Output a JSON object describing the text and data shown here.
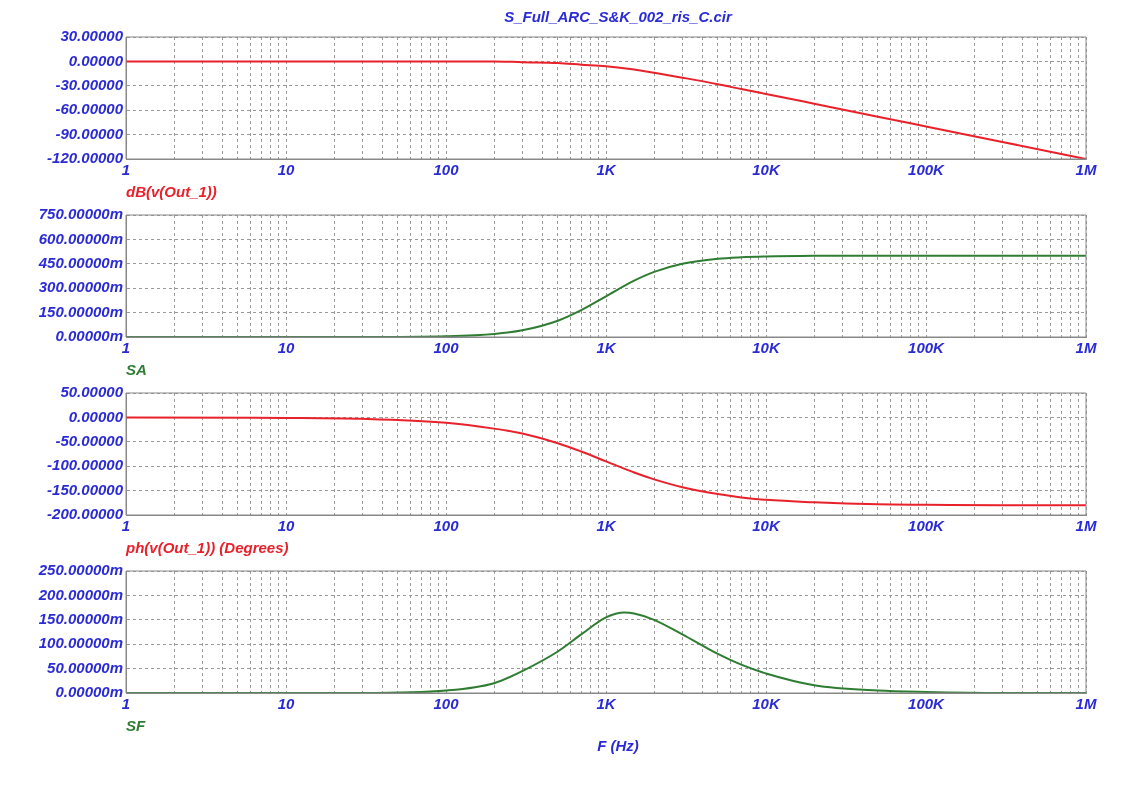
{
  "chart_data": [
    {
      "type": "line",
      "title": "S_Full_ARC_S&K_002_ris_C.cir",
      "log": "x",
      "grid": true,
      "marker": "none",
      "x": [
        1,
        10,
        30,
        100,
        200,
        300,
        500,
        700,
        1000,
        1500,
        2000,
        3000,
        5000,
        7000,
        10000,
        20000,
        50000,
        100000,
        300000,
        1000000
      ],
      "series": [
        {
          "name": "dB(v(Out_1))",
          "color": "#e8212b",
          "values": [
            0,
            0,
            0,
            0,
            0,
            -1,
            -2,
            -4,
            -6,
            -10,
            -14,
            -20,
            -28,
            -34,
            -40,
            -52,
            -68,
            -80,
            -99,
            -120
          ]
        }
      ],
      "xlim": [
        1,
        1000000
      ],
      "xticks": [
        {
          "value": 1,
          "label": "1"
        },
        {
          "value": 2,
          "label": null
        },
        {
          "value": 3,
          "label": null
        },
        {
          "value": 4,
          "label": null
        },
        {
          "value": 5,
          "label": null
        },
        {
          "value": 6,
          "label": null
        },
        {
          "value": 7,
          "label": null
        },
        {
          "value": 8,
          "label": null
        },
        {
          "value": 9,
          "label": null
        },
        {
          "value": 10,
          "label": "10"
        },
        {
          "value": 20,
          "label": null
        },
        {
          "value": 30,
          "label": null
        },
        {
          "value": 40,
          "label": null
        },
        {
          "value": 50,
          "label": null
        },
        {
          "value": 60,
          "label": null
        },
        {
          "value": 70,
          "label": null
        },
        {
          "value": 80,
          "label": null
        },
        {
          "value": 90,
          "label": null
        },
        {
          "value": 100,
          "label": "100"
        },
        {
          "value": 200,
          "label": null
        },
        {
          "value": 300,
          "label": null
        },
        {
          "value": 400,
          "label": null
        },
        {
          "value": 500,
          "label": null
        },
        {
          "value": 600,
          "label": null
        },
        {
          "value": 700,
          "label": null
        },
        {
          "value": 800,
          "label": null
        },
        {
          "value": 900,
          "label": null
        },
        {
          "value": 1000,
          "label": "1K"
        },
        {
          "value": 2000,
          "label": null
        },
        {
          "value": 3000,
          "label": null
        },
        {
          "value": 4000,
          "label": null
        },
        {
          "value": 5000,
          "label": null
        },
        {
          "value": 6000,
          "label": null
        },
        {
          "value": 7000,
          "label": null
        },
        {
          "value": 8000,
          "label": null
        },
        {
          "value": 9000,
          "label": null
        },
        {
          "value": 10000,
          "label": "10K"
        },
        {
          "value": 20000,
          "label": null
        },
        {
          "value": 30000,
          "label": null
        },
        {
          "value": 40000,
          "label": null
        },
        {
          "value": 50000,
          "label": null
        },
        {
          "value": 60000,
          "label": null
        },
        {
          "value": 70000,
          "label": null
        },
        {
          "value": 80000,
          "label": null
        },
        {
          "value": 90000,
          "label": null
        },
        {
          "value": 100000,
          "label": "100K"
        },
        {
          "value": 200000,
          "label": null
        },
        {
          "value": 300000,
          "label": null
        },
        {
          "value": 400000,
          "label": null
        },
        {
          "value": 500000,
          "label": null
        },
        {
          "value": 600000,
          "label": null
        },
        {
          "value": 700000,
          "label": null
        },
        {
          "value": 800000,
          "label": null
        },
        {
          "value": 900000,
          "label": null
        },
        {
          "value": 1000000,
          "label": "1M"
        }
      ],
      "ylim": [
        -120,
        30
      ],
      "yticks": [
        {
          "value": -120,
          "label": "-120.00000"
        },
        {
          "value": -90,
          "label": "-90.00000"
        },
        {
          "value": -60,
          "label": "-60.00000"
        },
        {
          "value": -30,
          "label": "-30.00000"
        },
        {
          "value": 0,
          "label": "0.00000"
        },
        {
          "value": 30,
          "label": "30.00000"
        }
      ]
    },
    {
      "type": "line",
      "log": "x",
      "grid": true,
      "marker": "none",
      "x": [
        1,
        10,
        30,
        100,
        200,
        300,
        500,
        700,
        1000,
        1500,
        2000,
        3000,
        5000,
        7000,
        10000,
        20000,
        50000,
        100000,
        300000,
        1000000
      ],
      "series": [
        {
          "name": "SA",
          "color": "#2e7d32",
          "values": [
            0,
            0,
            0,
            5,
            19,
            41,
            100,
            165,
            250,
            346,
            400,
            450,
            481,
            490,
            495,
            499,
            500,
            500,
            500,
            500
          ]
        }
      ],
      "xlim": [
        1,
        1000000
      ],
      "xticks": [
        {
          "value": 1,
          "label": "1"
        },
        {
          "value": 2,
          "label": null
        },
        {
          "value": 3,
          "label": null
        },
        {
          "value": 4,
          "label": null
        },
        {
          "value": 5,
          "label": null
        },
        {
          "value": 6,
          "label": null
        },
        {
          "value": 7,
          "label": null
        },
        {
          "value": 8,
          "label": null
        },
        {
          "value": 9,
          "label": null
        },
        {
          "value": 10,
          "label": "10"
        },
        {
          "value": 20,
          "label": null
        },
        {
          "value": 30,
          "label": null
        },
        {
          "value": 40,
          "label": null
        },
        {
          "value": 50,
          "label": null
        },
        {
          "value": 60,
          "label": null
        },
        {
          "value": 70,
          "label": null
        },
        {
          "value": 80,
          "label": null
        },
        {
          "value": 90,
          "label": null
        },
        {
          "value": 100,
          "label": "100"
        },
        {
          "value": 200,
          "label": null
        },
        {
          "value": 300,
          "label": null
        },
        {
          "value": 400,
          "label": null
        },
        {
          "value": 500,
          "label": null
        },
        {
          "value": 600,
          "label": null
        },
        {
          "value": 700,
          "label": null
        },
        {
          "value": 800,
          "label": null
        },
        {
          "value": 900,
          "label": null
        },
        {
          "value": 1000,
          "label": "1K"
        },
        {
          "value": 2000,
          "label": null
        },
        {
          "value": 3000,
          "label": null
        },
        {
          "value": 4000,
          "label": null
        },
        {
          "value": 5000,
          "label": null
        },
        {
          "value": 6000,
          "label": null
        },
        {
          "value": 7000,
          "label": null
        },
        {
          "value": 8000,
          "label": null
        },
        {
          "value": 9000,
          "label": null
        },
        {
          "value": 10000,
          "label": "10K"
        },
        {
          "value": 20000,
          "label": null
        },
        {
          "value": 30000,
          "label": null
        },
        {
          "value": 40000,
          "label": null
        },
        {
          "value": 50000,
          "label": null
        },
        {
          "value": 60000,
          "label": null
        },
        {
          "value": 70000,
          "label": null
        },
        {
          "value": 80000,
          "label": null
        },
        {
          "value": 90000,
          "label": null
        },
        {
          "value": 100000,
          "label": "100K"
        },
        {
          "value": 200000,
          "label": null
        },
        {
          "value": 300000,
          "label": null
        },
        {
          "value": 400000,
          "label": null
        },
        {
          "value": 500000,
          "label": null
        },
        {
          "value": 600000,
          "label": null
        },
        {
          "value": 700000,
          "label": null
        },
        {
          "value": 800000,
          "label": null
        },
        {
          "value": 900000,
          "label": null
        },
        {
          "value": 1000000,
          "label": "1M"
        }
      ],
      "ylim": [
        0,
        750
      ],
      "yticks": [
        {
          "value": 0,
          "label": "0.00000m"
        },
        {
          "value": 150,
          "label": "150.00000m"
        },
        {
          "value": 300,
          "label": "300.00000m"
        },
        {
          "value": 450,
          "label": "450.00000m"
        },
        {
          "value": 600,
          "label": "600.00000m"
        },
        {
          "value": 750,
          "label": "750.00000m"
        }
      ]
    },
    {
      "type": "line",
      "log": "x",
      "grid": true,
      "marker": "none",
      "x": [
        1,
        10,
        30,
        100,
        200,
        300,
        500,
        700,
        1000,
        1500,
        2000,
        3000,
        5000,
        7000,
        10000,
        20000,
        50000,
        100000,
        300000,
        1000000
      ],
      "series": [
        {
          "name": "ph(v(Out_1)) (Degrees)",
          "color": "#e8212b",
          "values": [
            0,
            -1,
            -3,
            -11,
            -23,
            -33,
            -53,
            -70,
            -90,
            -113,
            -127,
            -143,
            -157,
            -164,
            -169,
            -174,
            -178,
            -179,
            -180,
            -180
          ]
        }
      ],
      "xlim": [
        1,
        1000000
      ],
      "xticks": [
        {
          "value": 1,
          "label": "1"
        },
        {
          "value": 2,
          "label": null
        },
        {
          "value": 3,
          "label": null
        },
        {
          "value": 4,
          "label": null
        },
        {
          "value": 5,
          "label": null
        },
        {
          "value": 6,
          "label": null
        },
        {
          "value": 7,
          "label": null
        },
        {
          "value": 8,
          "label": null
        },
        {
          "value": 9,
          "label": null
        },
        {
          "value": 10,
          "label": "10"
        },
        {
          "value": 20,
          "label": null
        },
        {
          "value": 30,
          "label": null
        },
        {
          "value": 40,
          "label": null
        },
        {
          "value": 50,
          "label": null
        },
        {
          "value": 60,
          "label": null
        },
        {
          "value": 70,
          "label": null
        },
        {
          "value": 80,
          "label": null
        },
        {
          "value": 90,
          "label": null
        },
        {
          "value": 100,
          "label": "100"
        },
        {
          "value": 200,
          "label": null
        },
        {
          "value": 300,
          "label": null
        },
        {
          "value": 400,
          "label": null
        },
        {
          "value": 500,
          "label": null
        },
        {
          "value": 600,
          "label": null
        },
        {
          "value": 700,
          "label": null
        },
        {
          "value": 800,
          "label": null
        },
        {
          "value": 900,
          "label": null
        },
        {
          "value": 1000,
          "label": "1K"
        },
        {
          "value": 2000,
          "label": null
        },
        {
          "value": 3000,
          "label": null
        },
        {
          "value": 4000,
          "label": null
        },
        {
          "value": 5000,
          "label": null
        },
        {
          "value": 6000,
          "label": null
        },
        {
          "value": 7000,
          "label": null
        },
        {
          "value": 8000,
          "label": null
        },
        {
          "value": 9000,
          "label": null
        },
        {
          "value": 10000,
          "label": "10K"
        },
        {
          "value": 20000,
          "label": null
        },
        {
          "value": 30000,
          "label": null
        },
        {
          "value": 40000,
          "label": null
        },
        {
          "value": 50000,
          "label": null
        },
        {
          "value": 60000,
          "label": null
        },
        {
          "value": 70000,
          "label": null
        },
        {
          "value": 80000,
          "label": null
        },
        {
          "value": 90000,
          "label": null
        },
        {
          "value": 100000,
          "label": "100K"
        },
        {
          "value": 200000,
          "label": null
        },
        {
          "value": 300000,
          "label": null
        },
        {
          "value": 400000,
          "label": null
        },
        {
          "value": 500000,
          "label": null
        },
        {
          "value": 600000,
          "label": null
        },
        {
          "value": 700000,
          "label": null
        },
        {
          "value": 800000,
          "label": null
        },
        {
          "value": 900000,
          "label": null
        },
        {
          "value": 1000000,
          "label": "1M"
        }
      ],
      "ylim": [
        -200,
        50
      ],
      "yticks": [
        {
          "value": -200,
          "label": "-200.00000"
        },
        {
          "value": -150,
          "label": "-150.00000"
        },
        {
          "value": -100,
          "label": "-100.00000"
        },
        {
          "value": -50,
          "label": "-50.00000"
        },
        {
          "value": 0,
          "label": "0.00000"
        },
        {
          "value": 50,
          "label": "50.00000"
        }
      ]
    },
    {
      "type": "line",
      "xlabel": "F (Hz)",
      "log": "x",
      "grid": true,
      "marker": "none",
      "x": [
        1,
        10,
        30,
        100,
        200,
        300,
        500,
        700,
        1000,
        1300,
        1500,
        2000,
        3000,
        5000,
        7000,
        10000,
        20000,
        50000,
        100000,
        300000,
        1000000
      ],
      "series": [
        {
          "name": "SF",
          "color": "#2e7d32",
          "values": [
            0,
            0,
            0,
            5,
            20,
            45,
            85,
            120,
            155,
            165,
            163,
            150,
            120,
            80,
            58,
            40,
            16,
            5,
            2,
            0,
            0
          ]
        }
      ],
      "xlim": [
        1,
        1000000
      ],
      "xticks": [
        {
          "value": 1,
          "label": "1"
        },
        {
          "value": 2,
          "label": null
        },
        {
          "value": 3,
          "label": null
        },
        {
          "value": 4,
          "label": null
        },
        {
          "value": 5,
          "label": null
        },
        {
          "value": 6,
          "label": null
        },
        {
          "value": 7,
          "label": null
        },
        {
          "value": 8,
          "label": null
        },
        {
          "value": 9,
          "label": null
        },
        {
          "value": 10,
          "label": "10"
        },
        {
          "value": 20,
          "label": null
        },
        {
          "value": 30,
          "label": null
        },
        {
          "value": 40,
          "label": null
        },
        {
          "value": 50,
          "label": null
        },
        {
          "value": 60,
          "label": null
        },
        {
          "value": 70,
          "label": null
        },
        {
          "value": 80,
          "label": null
        },
        {
          "value": 90,
          "label": null
        },
        {
          "value": 100,
          "label": "100"
        },
        {
          "value": 200,
          "label": null
        },
        {
          "value": 300,
          "label": null
        },
        {
          "value": 400,
          "label": null
        },
        {
          "value": 500,
          "label": null
        },
        {
          "value": 600,
          "label": null
        },
        {
          "value": 700,
          "label": null
        },
        {
          "value": 800,
          "label": null
        },
        {
          "value": 900,
          "label": null
        },
        {
          "value": 1000,
          "label": "1K"
        },
        {
          "value": 2000,
          "label": null
        },
        {
          "value": 3000,
          "label": null
        },
        {
          "value": 4000,
          "label": null
        },
        {
          "value": 5000,
          "label": null
        },
        {
          "value": 6000,
          "label": null
        },
        {
          "value": 7000,
          "label": null
        },
        {
          "value": 8000,
          "label": null
        },
        {
          "value": 9000,
          "label": null
        },
        {
          "value": 10000,
          "label": "10K"
        },
        {
          "value": 20000,
          "label": null
        },
        {
          "value": 30000,
          "label": null
        },
        {
          "value": 40000,
          "label": null
        },
        {
          "value": 50000,
          "label": null
        },
        {
          "value": 60000,
          "label": null
        },
        {
          "value": 70000,
          "label": null
        },
        {
          "value": 80000,
          "label": null
        },
        {
          "value": 90000,
          "label": null
        },
        {
          "value": 100000,
          "label": "100K"
        },
        {
          "value": 200000,
          "label": null
        },
        {
          "value": 300000,
          "label": null
        },
        {
          "value": 400000,
          "label": null
        },
        {
          "value": 500000,
          "label": null
        },
        {
          "value": 600000,
          "label": null
        },
        {
          "value": 700000,
          "label": null
        },
        {
          "value": 800000,
          "label": null
        },
        {
          "value": 900000,
          "label": null
        },
        {
          "value": 1000000,
          "label": "1M"
        }
      ],
      "ylim": [
        0,
        250
      ],
      "yticks": [
        {
          "value": 0,
          "label": "0.00000m"
        },
        {
          "value": 50,
          "label": "50.00000m"
        },
        {
          "value": 100,
          "label": "100.00000m"
        },
        {
          "value": 150,
          "label": "150.00000m"
        },
        {
          "value": 200,
          "label": "200.00000m"
        },
        {
          "value": 250,
          "label": "250.00000m"
        }
      ]
    }
  ]
}
